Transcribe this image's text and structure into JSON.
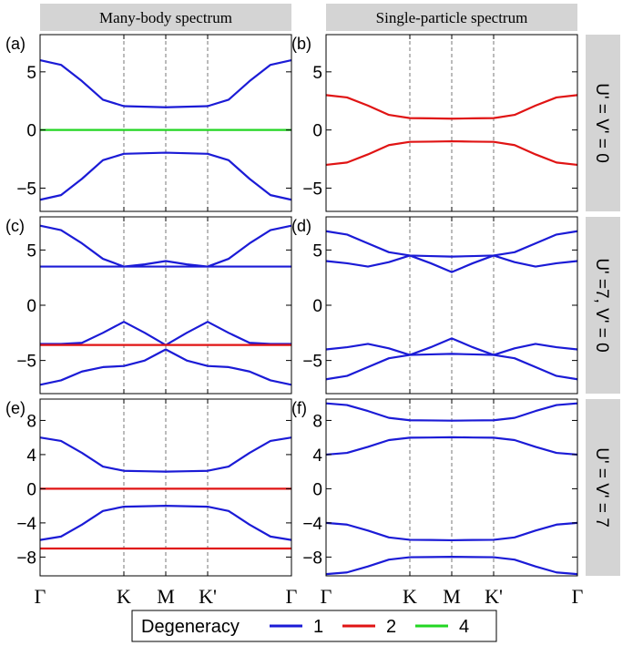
{
  "figure": {
    "column_titles": [
      "Many-body spectrum",
      "Single-particle  spectrum"
    ],
    "row_titles": [
      "U' = V' = 0",
      "U' =7, V' = 0",
      "U' = V' = 7"
    ],
    "legend": {
      "title": "Degeneracy",
      "entries": [
        {
          "label": "1",
          "color": "#1b1bd6"
        },
        {
          "label": "2",
          "color": "#e01414"
        },
        {
          "label": "4",
          "color": "#22d622"
        }
      ]
    },
    "header_fill": "#d4d4d4"
  },
  "chart_data": [
    {
      "type": "line",
      "panel": "(a)",
      "x_ticks": [
        "Γ",
        "K",
        "M",
        "K'",
        "Γ"
      ],
      "x_tick_positions": [
        0,
        1,
        1.5,
        2,
        3
      ],
      "ylim": [
        -7,
        8.2
      ],
      "yticks": [
        5,
        0,
        -5
      ],
      "ytick_labels": [
        "5",
        "0",
        "−5"
      ],
      "series": [
        {
          "degeneracy": "1",
          "color": "#1b1bd6",
          "x": [
            0,
            0.25,
            0.5,
            0.75,
            1,
            1.25,
            1.5,
            1.75,
            2,
            2.25,
            2.5,
            2.75,
            3
          ],
          "y": [
            6.0,
            5.6,
            4.2,
            2.6,
            2.05,
            2.0,
            1.95,
            2.0,
            2.05,
            2.6,
            4.2,
            5.6,
            6.0
          ]
        },
        {
          "degeneracy": "4",
          "color": "#22d622",
          "x": [
            0,
            3
          ],
          "y": [
            0,
            0
          ]
        },
        {
          "degeneracy": "1",
          "color": "#1b1bd6",
          "x": [
            0,
            0.25,
            0.5,
            0.75,
            1,
            1.25,
            1.5,
            1.75,
            2,
            2.25,
            2.5,
            2.75,
            3
          ],
          "y": [
            -6.0,
            -5.6,
            -4.2,
            -2.6,
            -2.05,
            -2.0,
            -1.95,
            -2.0,
            -2.05,
            -2.6,
            -4.2,
            -5.6,
            -6.0
          ]
        }
      ]
    },
    {
      "type": "line",
      "panel": "(b)",
      "x_ticks": [
        "Γ",
        "K",
        "M",
        "K'",
        "Γ"
      ],
      "x_tick_positions": [
        0,
        1,
        1.5,
        2,
        3
      ],
      "ylim": [
        -7,
        8.2
      ],
      "yticks": [
        5,
        0,
        -5
      ],
      "ytick_labels": [
        "5",
        "0",
        "−5"
      ],
      "series": [
        {
          "degeneracy": "2",
          "color": "#e01414",
          "x": [
            0,
            0.25,
            0.5,
            0.75,
            1,
            1.25,
            1.5,
            1.75,
            2,
            2.25,
            2.5,
            2.75,
            3
          ],
          "y": [
            3.0,
            2.8,
            2.1,
            1.3,
            1.02,
            1.0,
            0.97,
            1.0,
            1.02,
            1.3,
            2.1,
            2.8,
            3.0
          ]
        },
        {
          "degeneracy": "2",
          "color": "#e01414",
          "x": [
            0,
            0.25,
            0.5,
            0.75,
            1,
            1.25,
            1.5,
            1.75,
            2,
            2.25,
            2.5,
            2.75,
            3
          ],
          "y": [
            -3.0,
            -2.8,
            -2.1,
            -1.3,
            -1.02,
            -1.0,
            -0.97,
            -1.0,
            -1.02,
            -1.3,
            -2.1,
            -2.8,
            -3.0
          ]
        }
      ]
    },
    {
      "type": "line",
      "panel": "(c)",
      "x_ticks": [
        "Γ",
        "K",
        "M",
        "K'",
        "Γ"
      ],
      "x_tick_positions": [
        0,
        1,
        1.5,
        2,
        3
      ],
      "ylim": [
        -8,
        8
      ],
      "yticks": [
        5,
        0,
        -5
      ],
      "ytick_labels": [
        "5",
        "0",
        "−5"
      ],
      "series": [
        {
          "degeneracy": "1",
          "color": "#1b1bd6",
          "x": [
            0,
            0.25,
            0.5,
            0.75,
            1,
            1.25,
            1.5,
            1.75,
            2,
            2.25,
            2.5,
            2.75,
            3
          ],
          "y": [
            7.2,
            6.8,
            5.6,
            4.2,
            3.5,
            3.7,
            4.0,
            3.7,
            3.5,
            4.2,
            5.6,
            6.8,
            7.2
          ]
        },
        {
          "degeneracy": "1",
          "color": "#1b1bd6",
          "x": [
            0,
            3
          ],
          "y": [
            3.5,
            3.5
          ]
        },
        {
          "degeneracy": "1",
          "color": "#1b1bd6",
          "x": [
            0,
            0.25,
            0.5,
            0.75,
            1,
            1.25,
            1.5,
            1.75,
            2,
            2.25,
            2.5,
            2.75,
            3
          ],
          "y": [
            -3.5,
            -3.5,
            -3.4,
            -2.5,
            -1.5,
            -2.5,
            -3.6,
            -2.5,
            -1.5,
            -2.5,
            -3.4,
            -3.5,
            -3.5
          ]
        },
        {
          "degeneracy": "2",
          "color": "#e01414",
          "x": [
            0,
            3
          ],
          "y": [
            -3.6,
            -3.6
          ]
        },
        {
          "degeneracy": "1",
          "color": "#1b1bd6",
          "x": [
            0,
            0.25,
            0.5,
            0.75,
            1,
            1.25,
            1.5,
            1.75,
            2,
            2.25,
            2.5,
            2.75,
            3
          ],
          "y": [
            -7.2,
            -6.8,
            -6.0,
            -5.6,
            -5.5,
            -5.0,
            -4.0,
            -5.0,
            -5.5,
            -5.6,
            -6.0,
            -6.8,
            -7.2
          ]
        }
      ]
    },
    {
      "type": "line",
      "panel": "(d)",
      "x_ticks": [
        "Γ",
        "K",
        "M",
        "K'",
        "Γ"
      ],
      "x_tick_positions": [
        0,
        1,
        1.5,
        2,
        3
      ],
      "ylim": [
        -8,
        8
      ],
      "yticks": [
        5,
        0,
        -5
      ],
      "ytick_labels": [
        "5",
        "0",
        "−5"
      ],
      "series": [
        {
          "degeneracy": "1",
          "color": "#1b1bd6",
          "x": [
            0,
            0.25,
            0.5,
            0.75,
            1,
            1.25,
            1.5,
            1.75,
            2,
            2.25,
            2.5,
            2.75,
            3
          ],
          "y": [
            6.7,
            6.4,
            5.6,
            4.8,
            4.5,
            4.45,
            4.4,
            4.45,
            4.5,
            4.8,
            5.6,
            6.4,
            6.7
          ]
        },
        {
          "degeneracy": "1",
          "color": "#1b1bd6",
          "x": [
            0,
            0.25,
            0.5,
            0.75,
            1,
            1.25,
            1.5,
            1.75,
            2,
            2.25,
            2.5,
            2.75,
            3
          ],
          "y": [
            4.0,
            3.8,
            3.5,
            3.9,
            4.5,
            3.8,
            3.0,
            3.8,
            4.5,
            3.9,
            3.5,
            3.8,
            4.0
          ]
        },
        {
          "degeneracy": "1",
          "color": "#1b1bd6",
          "x": [
            0,
            0.25,
            0.5,
            0.75,
            1,
            1.25,
            1.5,
            1.75,
            2,
            2.25,
            2.5,
            2.75,
            3
          ],
          "y": [
            -4.0,
            -3.8,
            -3.5,
            -3.9,
            -4.5,
            -3.8,
            -3.0,
            -3.8,
            -4.5,
            -3.9,
            -3.5,
            -3.8,
            -4.0
          ]
        },
        {
          "degeneracy": "1",
          "color": "#1b1bd6",
          "x": [
            0,
            0.25,
            0.5,
            0.75,
            1,
            1.25,
            1.5,
            1.75,
            2,
            2.25,
            2.5,
            2.75,
            3
          ],
          "y": [
            -6.7,
            -6.4,
            -5.6,
            -4.8,
            -4.5,
            -4.45,
            -4.4,
            -4.45,
            -4.5,
            -4.8,
            -5.6,
            -6.4,
            -6.7
          ]
        }
      ]
    },
    {
      "type": "line",
      "panel": "(e)",
      "x_ticks": [
        "Γ",
        "K",
        "M",
        "K'",
        "Γ"
      ],
      "x_tick_positions": [
        0,
        1,
        1.5,
        2,
        3
      ],
      "ylim": [
        -10.2,
        10.5
      ],
      "yticks": [
        8,
        4,
        0,
        -4,
        -8
      ],
      "ytick_labels": [
        "8",
        "4",
        "0",
        "−4",
        "−8"
      ],
      "series": [
        {
          "degeneracy": "1",
          "color": "#1b1bd6",
          "x": [
            0,
            0.25,
            0.5,
            0.75,
            1,
            1.25,
            1.5,
            1.75,
            2,
            2.25,
            2.5,
            2.75,
            3
          ],
          "y": [
            6.0,
            5.6,
            4.2,
            2.6,
            2.1,
            2.05,
            2.0,
            2.05,
            2.1,
            2.6,
            4.2,
            5.6,
            6.0
          ]
        },
        {
          "degeneracy": "2",
          "color": "#e01414",
          "x": [
            0,
            3
          ],
          "y": [
            0,
            0
          ]
        },
        {
          "degeneracy": "1",
          "color": "#1b1bd6",
          "x": [
            0,
            0.25,
            0.5,
            0.75,
            1,
            1.25,
            1.5,
            1.75,
            2,
            2.25,
            2.5,
            2.75,
            3
          ],
          "y": [
            -6.0,
            -5.6,
            -4.2,
            -2.6,
            -2.1,
            -2.05,
            -2.0,
            -2.05,
            -2.1,
            -2.6,
            -4.2,
            -5.6,
            -6.0
          ]
        },
        {
          "degeneracy": "2",
          "color": "#e01414",
          "x": [
            0,
            3
          ],
          "y": [
            -7.0,
            -7.0
          ]
        }
      ]
    },
    {
      "type": "line",
      "panel": "(f)",
      "x_ticks": [
        "Γ",
        "K",
        "M",
        "K'",
        "Γ"
      ],
      "x_tick_positions": [
        0,
        1,
        1.5,
        2,
        3
      ],
      "ylim": [
        -10.2,
        10.5
      ],
      "yticks": [
        8,
        4,
        0,
        -4,
        -8
      ],
      "ytick_labels": [
        "8",
        "4",
        "0",
        "−4",
        "−8"
      ],
      "series": [
        {
          "degeneracy": "1",
          "color": "#1b1bd6",
          "x": [
            0,
            0.25,
            0.5,
            0.75,
            1,
            1.25,
            1.5,
            1.75,
            2,
            2.25,
            2.5,
            2.75,
            3
          ],
          "y": [
            10.0,
            9.8,
            9.1,
            8.3,
            8.02,
            8.0,
            7.97,
            8.0,
            8.02,
            8.3,
            9.1,
            9.8,
            10.0
          ]
        },
        {
          "degeneracy": "1",
          "color": "#1b1bd6",
          "x": [
            0,
            0.25,
            0.5,
            0.75,
            1,
            1.25,
            1.5,
            1.75,
            2,
            2.25,
            2.5,
            2.75,
            3
          ],
          "y": [
            4.0,
            4.2,
            4.9,
            5.7,
            5.98,
            6.0,
            6.03,
            6.0,
            5.98,
            5.7,
            4.9,
            4.2,
            4.0
          ]
        },
        {
          "degeneracy": "1",
          "color": "#1b1bd6",
          "x": [
            0,
            0.25,
            0.5,
            0.75,
            1,
            1.25,
            1.5,
            1.75,
            2,
            2.25,
            2.5,
            2.75,
            3
          ],
          "y": [
            -4.0,
            -4.2,
            -4.9,
            -5.7,
            -5.98,
            -6.0,
            -6.03,
            -6.0,
            -5.98,
            -5.7,
            -4.9,
            -4.2,
            -4.0
          ]
        },
        {
          "degeneracy": "1",
          "color": "#1b1bd6",
          "x": [
            0,
            0.25,
            0.5,
            0.75,
            1,
            1.25,
            1.5,
            1.75,
            2,
            2.25,
            2.5,
            2.75,
            3
          ],
          "y": [
            -10.0,
            -9.8,
            -9.1,
            -8.3,
            -8.02,
            -8.0,
            -7.97,
            -8.0,
            -8.02,
            -8.3,
            -9.1,
            -9.8,
            -10.0
          ]
        }
      ]
    }
  ]
}
